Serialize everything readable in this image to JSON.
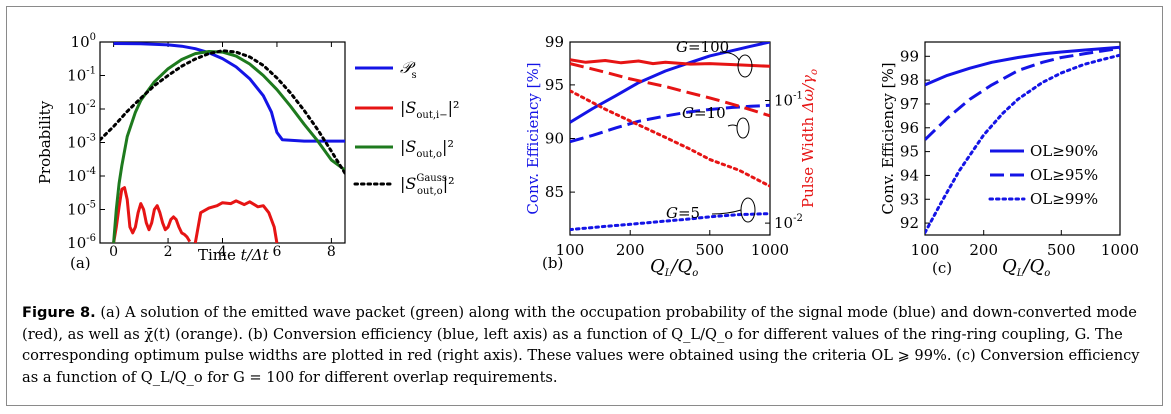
{
  "figure": {
    "caption_label": "Figure 8.",
    "caption_text": "(a) A solution of the emitted wave packet (green) along with the occupation probability of the signal mode (blue) and down-converted mode (red), as well as χ̄(t) (orange). (b) Conversion efficiency (blue, left axis) as a function of Q_L/Q_o for different values of the ring-ring coupling, G. The corresponding optimum pulse widths are plotted in red (right axis). These values were obtained using the criteria OL ⩾ 99%. (c) Conversion efficiency as a function of Q_L/Q_o for G = 100 for different overlap requirements."
  },
  "panels": {
    "a": {
      "tag": "(a)",
      "ylabel": "Probability",
      "xlabel_word": "Time",
      "xlabel_var": "t/Δt"
    },
    "b": {
      "tag": "(b)",
      "ylabel_left": "Conv. Efficiency [%]",
      "ylabel_right": "Pulse Width",
      "xlabel": "Q_L/Q_o"
    },
    "c": {
      "tag": "(c)",
      "ylabel": "Conv. Efficiency [%]",
      "xlabel": "Q_L/Q_o"
    }
  },
  "colors": {
    "blue": "#1414e6",
    "red": "#e61414",
    "green": "#1e7a1e",
    "black": "#000000"
  },
  "chart_data": [
    {
      "id": "a",
      "type": "line",
      "xlabel": "Time t/Δt",
      "ylabel": "Probability",
      "yscale": "log",
      "xlim": [
        -0.5,
        8.5
      ],
      "ylim": [
        1e-06,
        1
      ],
      "x_ticks": [
        0,
        2,
        4,
        6,
        8
      ],
      "y_ticks": [
        "10^0",
        "10^-1",
        "10^-2",
        "10^-3",
        "10^-4",
        "10^-5",
        "10^-6"
      ],
      "legend_placement": "right-outside",
      "series": [
        {
          "name": "P_s",
          "label_main": "𝒫",
          "label_sub": "s",
          "color": "#1414e6",
          "style": "solid",
          "x": [
            0,
            1,
            2,
            2.5,
            3,
            3.5,
            4,
            4.5,
            5,
            5.5,
            5.8,
            6,
            6.2,
            7,
            8,
            8.5
          ],
          "y": [
            0.9,
            0.89,
            0.82,
            0.75,
            0.63,
            0.48,
            0.32,
            0.18,
            0.08,
            0.025,
            0.008,
            0.002,
            0.0012,
            0.0011,
            0.0011,
            0.0011
          ]
        },
        {
          "name": "|S_out,i-|^2",
          "label_main": "|S",
          "label_sub": "out,i−",
          "label_tail": "|²",
          "color": "#e61414",
          "style": "solid",
          "x": [
            0,
            0.1,
            0.2,
            0.3,
            0.4,
            0.5,
            0.6,
            0.7,
            0.8,
            0.9,
            1.0,
            1.1,
            1.2,
            1.3,
            1.4,
            1.5,
            1.6,
            1.7,
            1.8,
            1.9,
            2.0,
            2.1,
            2.2,
            2.3,
            2.4,
            2.5,
            2.6,
            2.7,
            2.8
          ],
          "y": [
            1e-06,
            3e-06,
            1.2e-05,
            4e-05,
            4.5e-05,
            2e-05,
            3e-06,
            2e-06,
            3e-06,
            8e-06,
            1.5e-05,
            1e-05,
            4e-06,
            2.5e-06,
            4e-06,
            1e-05,
            1.3e-05,
            8e-06,
            4e-06,
            2.5e-06,
            3e-06,
            5e-06,
            6e-06,
            5e-06,
            3e-06,
            2e-06,
            1.8e-06,
            1.5e-06,
            1.1e-06
          ]
        },
        {
          "name": "|S_out,i-|^2 (second lobe)",
          "color": "#e61414",
          "style": "solid",
          "x": [
            3.0,
            3.2,
            3.5,
            3.8,
            4.0,
            4.3,
            4.5,
            4.8,
            5.0,
            5.3,
            5.5,
            5.7,
            5.9,
            6.0
          ],
          "y": [
            1e-06,
            8e-06,
            1.1e-05,
            1.3e-05,
            1.6e-05,
            1.5e-05,
            1.8e-05,
            1.4e-05,
            1.7e-05,
            1.2e-05,
            1.3e-05,
            8e-06,
            3e-06,
            1e-06
          ]
        },
        {
          "name": "|S_out,o|^2",
          "label_main": "|S",
          "label_sub": "out,o",
          "label_tail": "|²",
          "color": "#1e7a1e",
          "style": "solid",
          "x": [
            0,
            0.1,
            0.2,
            0.3,
            0.5,
            0.8,
            1.0,
            1.5,
            2.0,
            2.5,
            3.0,
            3.5,
            4.0,
            4.5,
            5.0,
            5.5,
            6.0,
            6.5,
            7.0,
            7.5,
            8.0,
            8.5
          ],
          "y": [
            1e-06,
            1e-05,
            6e-05,
            0.0002,
            0.0015,
            0.008,
            0.018,
            0.065,
            0.16,
            0.3,
            0.45,
            0.52,
            0.5,
            0.38,
            0.22,
            0.1,
            0.038,
            0.012,
            0.0035,
            0.0011,
            0.0003,
            0.00015
          ]
        },
        {
          "name": "|S_out,o^Gauss|^2",
          "label_main": "|S",
          "label_sub": "out,o",
          "label_sup": "Gauss",
          "label_tail": "|²",
          "color": "#000000",
          "style": "dotted",
          "x": [
            -0.5,
            0,
            0.5,
            1.0,
            1.5,
            2.0,
            2.5,
            3.0,
            3.5,
            4.0,
            4.5,
            5.0,
            5.5,
            6.0,
            6.5,
            7.0,
            7.5,
            8.0,
            8.5
          ],
          "y": [
            0.0012,
            0.003,
            0.0085,
            0.021,
            0.05,
            0.1,
            0.19,
            0.31,
            0.45,
            0.55,
            0.5,
            0.36,
            0.2,
            0.085,
            0.03,
            0.009,
            0.0024,
            0.00055,
            0.00012
          ]
        }
      ]
    },
    {
      "id": "b",
      "type": "line",
      "xlabel": "Q_L/Q_o",
      "ylabel": "Conv. Efficiency [%]",
      "ylabel_right": "Pulse Width Δω/γ_o",
      "xscale": "log",
      "xlim": [
        100,
        1000
      ],
      "ylim": [
        81,
        99
      ],
      "ylim_right": [
        0.008,
        0.3
      ],
      "yscale_right": "log",
      "x_ticks": [
        100,
        200,
        500,
        1000
      ],
      "y_ticks": [
        85,
        90,
        95,
        99
      ],
      "y_ticks_right": [
        "10^-2",
        "10^-1"
      ],
      "annotations": [
        {
          "main": "G",
          "eq": "=100"
        },
        {
          "main": "G",
          "eq": "=10"
        },
        {
          "main": "G",
          "eq": "=5"
        }
      ],
      "series": [
        {
          "name": "G=100 efficiency",
          "axis": "left",
          "color": "#1414e6",
          "style": "solid",
          "x": [
            100,
            130,
            170,
            220,
            300,
            400,
            500,
            650,
            800,
            1000
          ],
          "y": [
            91.5,
            92.8,
            94.0,
            95.2,
            96.3,
            97.1,
            97.7,
            98.2,
            98.6,
            99.0
          ]
        },
        {
          "name": "G=10 efficiency",
          "axis": "left",
          "color": "#1414e6",
          "style": "dashed",
          "x": [
            100,
            130,
            170,
            220,
            300,
            400,
            500,
            650,
            800,
            1000
          ],
          "y": [
            89.7,
            90.3,
            91.0,
            91.6,
            92.1,
            92.5,
            92.7,
            92.9,
            93.0,
            93.1
          ]
        },
        {
          "name": "G=5 efficiency",
          "axis": "left",
          "color": "#1414e6",
          "style": "dotted",
          "x": [
            100,
            150,
            200,
            300,
            400,
            500,
            700,
            1000
          ],
          "y": [
            81.5,
            81.8,
            82.0,
            82.3,
            82.5,
            82.7,
            82.9,
            83.0
          ]
        },
        {
          "name": "G=100 pulse width",
          "axis": "right",
          "color": "#e61414",
          "style": "solid",
          "x": [
            100,
            120,
            150,
            180,
            220,
            260,
            300,
            400,
            500,
            700,
            1000
          ],
          "y": [
            0.215,
            0.205,
            0.212,
            0.203,
            0.21,
            0.2,
            0.205,
            0.198,
            0.2,
            0.195,
            0.19
          ]
        },
        {
          "name": "G=10 pulse width",
          "axis": "right",
          "color": "#e61414",
          "style": "dashed",
          "x": [
            100,
            150,
            200,
            300,
            400,
            500,
            700,
            1000
          ],
          "y": [
            0.2,
            0.17,
            0.15,
            0.13,
            0.115,
            0.105,
            0.09,
            0.075
          ]
        },
        {
          "name": "G=5 pulse width",
          "axis": "right",
          "color": "#e61414",
          "style": "dotted",
          "x": [
            100,
            150,
            200,
            300,
            400,
            500,
            700,
            1000
          ],
          "y": [
            0.12,
            0.085,
            0.068,
            0.05,
            0.04,
            0.033,
            0.027,
            0.02
          ]
        }
      ]
    },
    {
      "id": "c",
      "type": "line",
      "xlabel": "Q_L/Q_o",
      "ylabel": "Conv. Efficiency [%]",
      "xscale": "log",
      "xlim": [
        100,
        1000
      ],
      "ylim": [
        91.5,
        99.6
      ],
      "x_ticks": [
        100,
        200,
        500,
        1000
      ],
      "y_ticks": [
        92,
        93,
        94,
        95,
        96,
        97,
        98,
        99
      ],
      "legend_placement": "lower-right",
      "series": [
        {
          "name": "OL≥90%",
          "color": "#1414e6",
          "style": "solid",
          "x": [
            100,
            130,
            170,
            220,
            300,
            400,
            500,
            650,
            800,
            1000
          ],
          "y": [
            97.8,
            98.2,
            98.5,
            98.75,
            98.95,
            99.1,
            99.18,
            99.26,
            99.32,
            99.38
          ]
        },
        {
          "name": "OL≥95%",
          "color": "#1414e6",
          "style": "dashed",
          "x": [
            100,
            130,
            170,
            220,
            300,
            400,
            500,
            650,
            800,
            1000
          ],
          "y": [
            95.5,
            96.4,
            97.2,
            97.8,
            98.4,
            98.75,
            98.95,
            99.1,
            99.22,
            99.33
          ]
        },
        {
          "name": "OL≥99%",
          "color": "#1414e6",
          "style": "dotted",
          "x": [
            100,
            120,
            150,
            200,
            250,
            300,
            400,
            500,
            650,
            800,
            1000
          ],
          "y": [
            91.6,
            92.8,
            94.2,
            95.7,
            96.6,
            97.2,
            97.9,
            98.3,
            98.65,
            98.85,
            99.05
          ]
        }
      ]
    }
  ]
}
